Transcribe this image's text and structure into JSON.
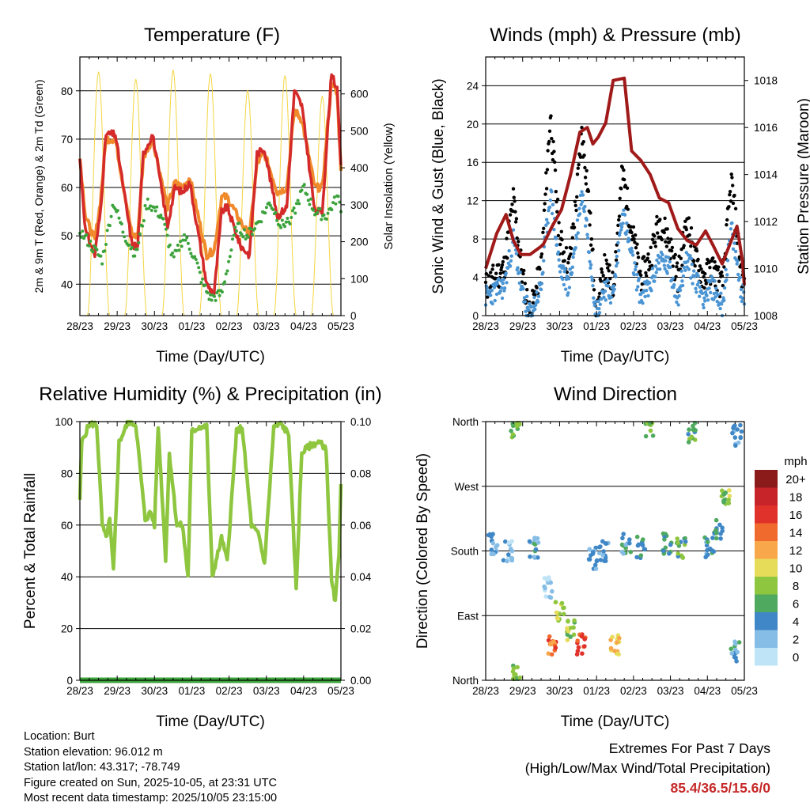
{
  "colors": {
    "temp2m": "#d42a2a",
    "temp9m": "#f08a2c",
    "dewpoint": "#3ca33c",
    "solar": "#f4d542",
    "wind": "#4b95d4",
    "gust": "#000000",
    "pressure": "#a11a1a",
    "rh": "#8ec63f",
    "precip": "#3ca33c",
    "extremes": "#c62828"
  },
  "chart_data": [
    {
      "id": "temperature",
      "type": "line",
      "title": "Temperature (F)",
      "xlabel": "Time (Day/UTC)",
      "ylabel": "2m & 9m T (Red, Orange) & 2m Td (Green)",
      "y2label": "Solar Insolation (Yellow)",
      "xticks": [
        "28/23",
        "29/23",
        "30/23",
        "01/23",
        "02/23",
        "03/23",
        "04/23",
        "05/23"
      ],
      "xlim": [
        0,
        7
      ],
      "ylim": [
        33.5,
        87
      ],
      "yticks": [
        40,
        50,
        60,
        70,
        80
      ],
      "y2lim": [
        0,
        700
      ],
      "y2ticks": [
        0,
        100,
        200,
        300,
        400,
        500,
        600
      ],
      "series": [
        {
          "name": "2m T",
          "color": "#d42a2a",
          "x": [
            0,
            0.15,
            0.4,
            0.55,
            0.7,
            0.95,
            1.4,
            1.55,
            1.7,
            1.95,
            2.35,
            2.55,
            2.75,
            2.95,
            3.4,
            3.6,
            3.8,
            3.95,
            4.3,
            4.55,
            4.75,
            4.95,
            5.3,
            5.55,
            5.75,
            5.95,
            6.3,
            6.5,
            6.75,
            6.9,
            7
          ],
          "y": [
            66,
            51,
            46,
            55,
            71,
            71,
            48,
            48,
            67,
            71,
            52,
            60,
            59,
            61,
            40,
            38,
            55,
            56,
            48,
            46,
            67,
            68,
            54,
            56,
            80,
            77,
            55,
            55,
            84,
            80,
            64
          ]
        },
        {
          "name": "9m T",
          "color": "#f08a2c",
          "x": [
            0,
            0.15,
            0.4,
            0.55,
            0.7,
            0.95,
            1.4,
            1.55,
            1.7,
            1.95,
            2.35,
            2.55,
            2.75,
            2.95,
            3.4,
            3.6,
            3.8,
            3.95,
            4.3,
            4.55,
            4.75,
            4.95,
            5.3,
            5.55,
            5.75,
            5.95,
            6.3,
            6.5,
            6.75,
            6.9,
            7
          ],
          "y": [
            66,
            54,
            49,
            57,
            70,
            70,
            50,
            50,
            66,
            70,
            56,
            61,
            60,
            62,
            46,
            47,
            58,
            58,
            53,
            50,
            65,
            67,
            59,
            60,
            76,
            74,
            60,
            60,
            82,
            79,
            64
          ]
        },
        {
          "name": "2m Td",
          "color": "#3ca33c",
          "x": [
            0,
            0.3,
            0.6,
            0.9,
            1.2,
            1.5,
            1.8,
            2.2,
            2.5,
            2.8,
            3.1,
            3.3,
            3.5,
            3.8,
            4.2,
            4.5,
            4.8,
            5.1,
            5.4,
            5.7,
            6.0,
            6.3,
            6.6,
            6.9,
            7
          ],
          "y": [
            51,
            48,
            45,
            57,
            50,
            46,
            57,
            54,
            45,
            50,
            45,
            40,
            37,
            38,
            52,
            50,
            53,
            57,
            52,
            54,
            60,
            55,
            54,
            58,
            56
          ]
        },
        {
          "name": "Solar Insolation",
          "color": "#f4d542",
          "axis": "y2",
          "peaks": [
            {
              "x": 0.5,
              "y": 660
            },
            {
              "x": 1.5,
              "y": 640
            },
            {
              "x": 2.5,
              "y": 665
            },
            {
              "x": 3.5,
              "y": 655
            },
            {
              "x": 4.5,
              "y": 610
            },
            {
              "x": 5.5,
              "y": 650
            },
            {
              "x": 6.5,
              "y": 595
            }
          ]
        }
      ]
    },
    {
      "id": "winds",
      "type": "scatter",
      "title": "Winds (mph) & Pressure (mb)",
      "xlabel": "Time (Day/UTC)",
      "ylabel": "Sonic Wind & Gust (Blue, Black)",
      "y2label": "Station Pressure (Maroon)",
      "xticks": [
        "28/23",
        "29/23",
        "30/23",
        "01/23",
        "02/23",
        "03/23",
        "04/23",
        "05/23"
      ],
      "xlim": [
        0,
        7
      ],
      "ylim": [
        0,
        27
      ],
      "yticks": [
        0,
        4,
        8,
        12,
        16,
        20,
        24
      ],
      "y2lim": [
        1008,
        1019
      ],
      "y2ticks": [
        1008,
        1010,
        1012,
        1014,
        1016,
        1018
      ],
      "series": [
        {
          "name": "Gust",
          "color": "#000000",
          "x": [
            0,
            0.5,
            0.75,
            1,
            1.2,
            1.5,
            1.75,
            2,
            2.25,
            2.45,
            2.6,
            2.75,
            3,
            3.2,
            3.45,
            3.7,
            3.95,
            4.2,
            4.45,
            4.7,
            4.95,
            5.2,
            5.45,
            5.65,
            5.9,
            6.15,
            6.4,
            6.65,
            6.9,
            7
          ],
          "y": [
            3,
            5,
            12,
            4,
            0,
            5,
            21,
            8,
            5,
            12,
            19,
            14,
            0,
            5,
            3,
            15,
            9,
            4,
            6,
            10,
            8,
            4,
            10,
            6,
            4,
            5,
            3,
            14,
            5,
            3
          ]
        },
        {
          "name": "Wind",
          "color": "#4b95d4",
          "x": [
            0,
            0.5,
            0.75,
            1,
            1.2,
            1.5,
            1.75,
            2,
            2.25,
            2.45,
            2.6,
            2.75,
            3,
            3.2,
            3.45,
            3.7,
            3.95,
            4.2,
            4.45,
            4.7,
            4.95,
            5.2,
            5.45,
            5.65,
            5.9,
            6.15,
            6.4,
            6.65,
            6.9,
            7
          ],
          "y": [
            2,
            3,
            8,
            2,
            0,
            3,
            13,
            5,
            3,
            8,
            13,
            9,
            0,
            3,
            2,
            11,
            6,
            2,
            3,
            6,
            5,
            2,
            6,
            4,
            2,
            3,
            1,
            9,
            3,
            2
          ]
        },
        {
          "name": "Station Pressure",
          "color": "#a11a1a",
          "axis": "y2",
          "x": [
            0,
            0.3,
            0.55,
            0.75,
            0.95,
            1.2,
            1.55,
            1.8,
            2.05,
            2.3,
            2.55,
            2.75,
            2.9,
            3.05,
            3.25,
            3.45,
            3.75,
            3.95,
            4.2,
            4.45,
            4.7,
            4.95,
            5.2,
            5.45,
            5.7,
            5.95,
            6.15,
            6.4,
            6.6,
            6.8,
            6.95,
            7
          ],
          "y": [
            1010,
            1011.5,
            1012.3,
            1011.2,
            1010.6,
            1010.6,
            1011,
            1011.8,
            1012.5,
            1014,
            1015.8,
            1016,
            1015.3,
            1015.6,
            1016.2,
            1018,
            1018.1,
            1015,
            1014.6,
            1014,
            1013,
            1012.8,
            1011.7,
            1011.2,
            1011,
            1011.6,
            1011,
            1010.2,
            1011,
            1011.8,
            1010.3,
            1009.3
          ]
        }
      ]
    },
    {
      "id": "humidity",
      "type": "line",
      "title": "Relative Humidity (%) & Precipitation (in)",
      "xlabel": "Time (Day/UTC)",
      "ylabel": "Percent & Total Rainfall",
      "xticks": [
        "28/23",
        "29/23",
        "30/23",
        "01/23",
        "02/23",
        "03/23",
        "04/23",
        "05/23"
      ],
      "xlim": [
        0,
        7
      ],
      "ylim": [
        0,
        100
      ],
      "yticks": [
        0,
        20,
        40,
        60,
        80,
        100
      ],
      "y2lim": [
        0,
        0.1
      ],
      "y2ticks": [
        "0.00",
        "0.02",
        "0.04",
        "0.06",
        "0.08",
        "0.10"
      ],
      "series": [
        {
          "name": "Relative Humidity",
          "color": "#8ec63f",
          "x": [
            0,
            0.05,
            0.25,
            0.45,
            0.6,
            0.7,
            0.8,
            0.9,
            1.05,
            1.3,
            1.5,
            1.75,
            1.9,
            2.0,
            2.1,
            2.3,
            2.4,
            2.6,
            2.75,
            2.9,
            3.0,
            3.2,
            3.4,
            3.55,
            3.8,
            3.95,
            4.2,
            4.35,
            4.6,
            4.8,
            4.95,
            5.2,
            5.4,
            5.6,
            5.8,
            5.95,
            6.2,
            6.4,
            6.6,
            6.75,
            6.85,
            6.95,
            7
          ],
          "y": [
            70,
            92,
            99,
            99,
            60,
            55,
            62,
            42,
            92,
            100,
            99,
            62,
            65,
            60,
            98,
            47,
            88,
            60,
            60,
            40,
            96,
            98,
            98,
            40,
            55,
            46,
            96,
            98,
            60,
            56,
            45,
            98,
            99,
            95,
            35,
            88,
            91,
            92,
            90,
            38,
            30,
            50,
            77
          ]
        },
        {
          "name": "Total Precipitation",
          "color": "#3ca33c",
          "axis": "y2",
          "x": [
            0,
            7
          ],
          "y": [
            0,
            0
          ]
        }
      ]
    },
    {
      "id": "direction",
      "type": "scatter",
      "title": "Wind Direction",
      "xlabel": "Time (Day/UTC)",
      "ylabel": "Direction (Colored By Speed)",
      "xticks": [
        "28/23",
        "29/23",
        "30/23",
        "01/23",
        "02/23",
        "03/23",
        "04/23",
        "05/23"
      ],
      "xlim": [
        0,
        7
      ],
      "ylim": [
        0,
        360
      ],
      "ytick_labels": [
        "North",
        "East",
        "South",
        "West",
        "North"
      ],
      "yticks": [
        0,
        90,
        180,
        270,
        360
      ],
      "colorbar": {
        "title": "mph",
        "labels": [
          "20+",
          "18",
          "16",
          "14",
          "12",
          "10",
          "8",
          "6",
          "4",
          "2",
          "0"
        ],
        "colors": [
          "#8b1a1a",
          "#c62428",
          "#e0322a",
          "#f06a2e",
          "#f8a84a",
          "#e6dc5a",
          "#8ec63f",
          "#4faa5f",
          "#3f87c6",
          "#86bde6",
          "#bfe3f7"
        ]
      },
      "points": [
        {
          "x": 0.2,
          "y": 190,
          "speed": 3
        },
        {
          "x": 0.6,
          "y": 180,
          "speed": 2
        },
        {
          "x": 0.8,
          "y": 350,
          "speed": 7
        },
        {
          "x": 0.85,
          "y": 10,
          "speed": 7
        },
        {
          "x": 1.3,
          "y": 185,
          "speed": 4
        },
        {
          "x": 1.7,
          "y": 130,
          "speed": 2
        },
        {
          "x": 1.8,
          "y": 50,
          "speed": 14
        },
        {
          "x": 2.0,
          "y": 95,
          "speed": 9
        },
        {
          "x": 2.3,
          "y": 70,
          "speed": 8
        },
        {
          "x": 2.6,
          "y": 50,
          "speed": 15
        },
        {
          "x": 2.9,
          "y": 170,
          "speed": 3
        },
        {
          "x": 3.2,
          "y": 180,
          "speed": 3
        },
        {
          "x": 3.5,
          "y": 50,
          "speed": 11
        },
        {
          "x": 3.8,
          "y": 190,
          "speed": 4
        },
        {
          "x": 4.2,
          "y": 185,
          "speed": 5
        },
        {
          "x": 4.45,
          "y": 350,
          "speed": 7
        },
        {
          "x": 4.9,
          "y": 190,
          "speed": 5
        },
        {
          "x": 5.3,
          "y": 185,
          "speed": 6
        },
        {
          "x": 5.55,
          "y": 345,
          "speed": 6
        },
        {
          "x": 6.05,
          "y": 185,
          "speed": 4
        },
        {
          "x": 6.3,
          "y": 210,
          "speed": 5
        },
        {
          "x": 6.5,
          "y": 260,
          "speed": 8
        },
        {
          "x": 6.75,
          "y": 40,
          "speed": 4
        },
        {
          "x": 6.8,
          "y": 340,
          "speed": 3
        }
      ]
    }
  ],
  "info": {
    "location": "Location: Burt",
    "elevation": "Station elevation: 96.012 m",
    "latlon": "Station lat/lon: 43.317; -78.749",
    "created": "Figure created on Sun, 2025-10-05, at 23:31 UTC",
    "recent": "Most recent data timestamp: 2025/10/05 23:15:00"
  },
  "extremes": {
    "title": "Extremes For Past 7 Days",
    "subtitle": "(High/Low/Max Wind/Total Precipitation)",
    "values": "85.4/36.5/15.6/0"
  }
}
